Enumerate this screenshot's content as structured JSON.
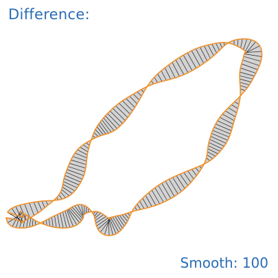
{
  "title": "Difference:",
  "smooth": {
    "label": "Smooth:",
    "value": "100"
  },
  "colors": {
    "text": "#2a6cb4",
    "ribbon_fill": "#d3d3d3",
    "ribbon_edge": "#f0902a",
    "rung": "#202020"
  }
}
